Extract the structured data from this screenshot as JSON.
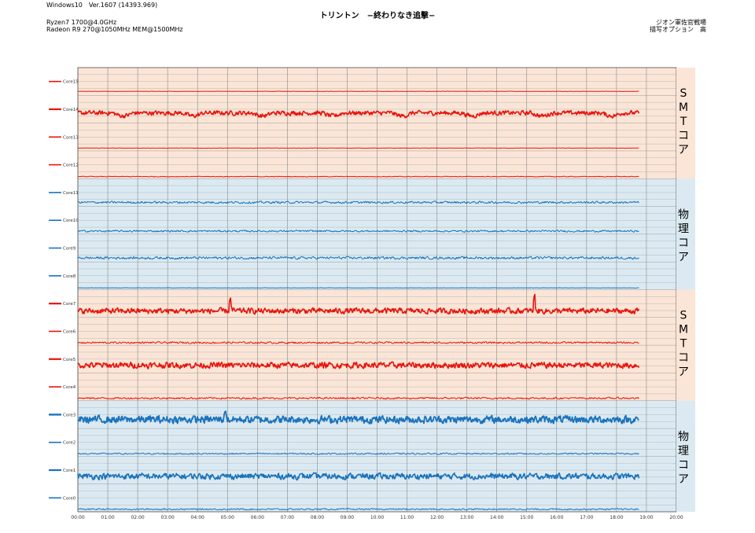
{
  "header": {
    "os": "Windows10　Ver.1607 (14393.969)",
    "cpu": "Ryzen7 1700@4.0GHz",
    "gpu": "Radeon R9 270@1050MHz MEM@1500MHz",
    "title": "トリントン　−終わりなき追撃−",
    "location": "ジオン軍佐官戦場",
    "quality": "描写オプション　高"
  },
  "colors": {
    "smt_band": "#fbe5d6",
    "phys_band": "#dbeaf2",
    "smt_line": "#e8140c",
    "phys_line": "#1a73bd",
    "grid": "#8a8a8a"
  },
  "side_labels": [
    {
      "group": "smt",
      "chars": [
        "S",
        "M",
        "T",
        "コ",
        "ア"
      ]
    },
    {
      "group": "phys",
      "chars": [
        "物",
        "理",
        "コ",
        "ア"
      ]
    },
    {
      "group": "smt",
      "chars": [
        "S",
        "M",
        "T",
        "コ",
        "ア"
      ]
    },
    {
      "group": "phys",
      "chars": [
        "物",
        "理",
        "コ",
        "ア"
      ]
    }
  ],
  "chart_data": {
    "type": "line",
    "x_ticks": [
      "00:00",
      "01:00",
      "02:00",
      "03:00",
      "04:00",
      "05:00",
      "06:00",
      "07:00",
      "08:00",
      "09:00",
      "10:00",
      "11:00",
      "12:00",
      "13:00",
      "14:00",
      "15:00",
      "16:00",
      "17:00",
      "18:00",
      "19:00",
      "20:00"
    ],
    "x_range_minutes": [
      0,
      1200
    ],
    "series_end_minute": 1125,
    "series": [
      {
        "name": "Core15",
        "group": "smt",
        "level": 0.1,
        "noise": 0.01,
        "width": 1.0
      },
      {
        "name": "Core14",
        "group": "smt",
        "level": 0.35,
        "noise": 0.12,
        "width": 1.6,
        "dips": true
      },
      {
        "name": "Core13",
        "group": "smt",
        "level": 0.05,
        "noise": 0.01,
        "width": 1.0
      },
      {
        "name": "Core12",
        "group": "smt",
        "level": 0.02,
        "noise": 0.02,
        "width": 1.0
      },
      {
        "name": "Core11",
        "group": "phys",
        "level": 0.1,
        "noise": 0.06,
        "width": 1.0
      },
      {
        "name": "Core10",
        "group": "phys",
        "level": 0.06,
        "noise": 0.05,
        "width": 1.0
      },
      {
        "name": "Core9",
        "group": "phys",
        "level": 0.1,
        "noise": 0.07,
        "width": 1.0
      },
      {
        "name": "Core8",
        "group": "phys",
        "level": 0.01,
        "noise": 0.01,
        "width": 1.0
      },
      {
        "name": "Core7",
        "group": "smt",
        "level": 0.2,
        "noise": 0.15,
        "width": 1.6,
        "spikes": [
          [
            305,
            0.75
          ],
          [
            915,
            0.9
          ]
        ]
      },
      {
        "name": "Core6",
        "group": "smt",
        "level": 0.04,
        "noise": 0.05,
        "width": 1.0
      },
      {
        "name": "Core5",
        "group": "smt",
        "level": 0.25,
        "noise": 0.16,
        "width": 1.6
      },
      {
        "name": "Core4",
        "group": "smt",
        "level": 0.04,
        "noise": 0.05,
        "width": 1.0
      },
      {
        "name": "Core3",
        "group": "phys",
        "level": 0.3,
        "noise": 0.2,
        "width": 1.8,
        "spikes": [
          [
            295,
            0.65
          ]
        ]
      },
      {
        "name": "Core2",
        "group": "phys",
        "level": 0.04,
        "noise": 0.04,
        "width": 1.0
      },
      {
        "name": "Core1",
        "group": "phys",
        "level": 0.25,
        "noise": 0.16,
        "width": 1.6
      },
      {
        "name": "Core0",
        "group": "phys",
        "level": 0.04,
        "noise": 0.04,
        "width": 1.0
      }
    ]
  }
}
